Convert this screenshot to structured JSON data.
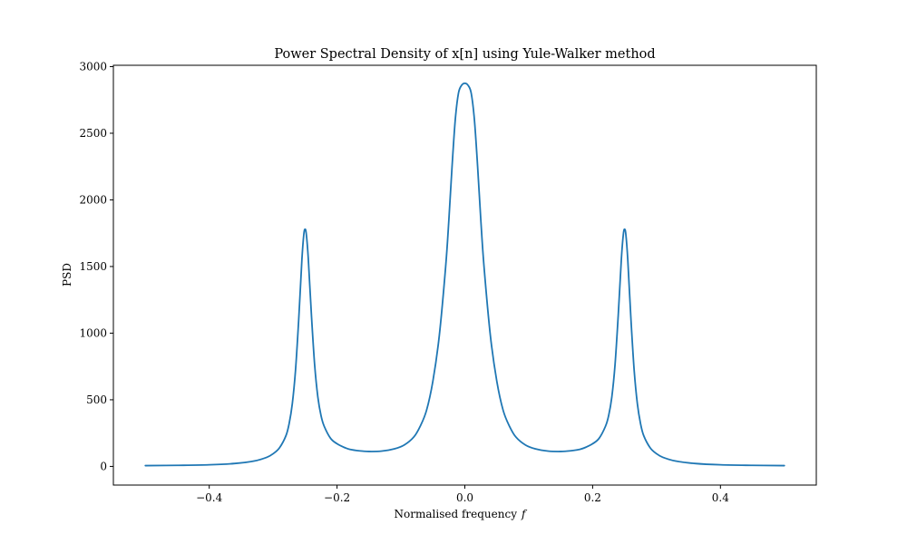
{
  "chart_data": {
    "type": "line",
    "title": "Power Spectral Density of x[n] using Yule-Walker method",
    "xlabel": "Normalised frequency",
    "xlabel_var": "f",
    "ylabel": "PSD",
    "xlim": [
      -0.55,
      0.55
    ],
    "ylim": [
      -140,
      3010
    ],
    "x_ticks": [
      -0.4,
      -0.2,
      0.0,
      0.2,
      0.4
    ],
    "x_tick_labels": [
      "−0.4",
      "−0.2",
      "0.0",
      "0.2",
      "0.4"
    ],
    "y_ticks": [
      0,
      500,
      1000,
      1500,
      2000,
      2500,
      3000
    ],
    "y_tick_labels": [
      "0",
      "500",
      "1000",
      "1500",
      "2000",
      "2500",
      "3000"
    ],
    "grid": false,
    "line_color": "#1f77b4",
    "series": [
      {
        "x": [
          -0.5,
          -0.45,
          -0.4,
          -0.36,
          -0.33,
          -0.31,
          -0.3,
          -0.29,
          -0.28,
          -0.275,
          -0.27,
          -0.265,
          -0.26,
          -0.255,
          -0.252,
          -0.25,
          -0.248,
          -0.245,
          -0.24,
          -0.235,
          -0.23,
          -0.225,
          -0.22,
          -0.21,
          -0.2,
          -0.19,
          -0.18,
          -0.165,
          -0.15,
          -0.13,
          -0.11,
          -0.095,
          -0.08,
          -0.07,
          -0.06,
          -0.05,
          -0.04,
          -0.03,
          -0.025,
          -0.02,
          -0.015,
          -0.01,
          -0.005,
          0.0,
          0.005,
          0.01,
          0.015,
          0.02,
          0.025,
          0.03,
          0.04,
          0.05,
          0.06,
          0.07,
          0.08,
          0.095,
          0.11,
          0.13,
          0.15,
          0.165,
          0.18,
          0.19,
          0.2,
          0.21,
          0.22,
          0.225,
          0.23,
          0.235,
          0.24,
          0.245,
          0.248,
          0.25,
          0.252,
          0.255,
          0.26,
          0.265,
          0.27,
          0.275,
          0.28,
          0.29,
          0.3,
          0.31,
          0.33,
          0.36,
          0.4,
          0.45,
          0.5
        ],
        "values": [
          6,
          8,
          12,
          22,
          40,
          68,
          95,
          140,
          230,
          320,
          470,
          720,
          1100,
          1550,
          1740,
          1780,
          1740,
          1560,
          1130,
          760,
          520,
          380,
          300,
          210,
          170,
          145,
          128,
          117,
          112,
          115,
          132,
          160,
          220,
          300,
          420,
          640,
          980,
          1500,
          1850,
          2250,
          2600,
          2800,
          2860,
          2875,
          2860,
          2800,
          2600,
          2250,
          1850,
          1500,
          980,
          640,
          420,
          300,
          220,
          160,
          132,
          115,
          112,
          117,
          128,
          145,
          170,
          210,
          300,
          380,
          520,
          760,
          1130,
          1560,
          1740,
          1780,
          1740,
          1550,
          1100,
          720,
          470,
          320,
          230,
          140,
          95,
          68,
          40,
          22,
          12,
          8,
          6
        ]
      }
    ]
  }
}
